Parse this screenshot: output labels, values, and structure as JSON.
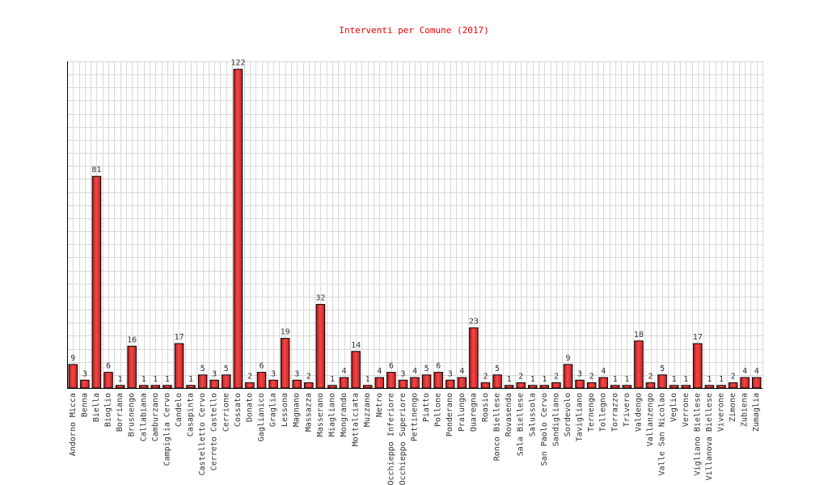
{
  "chart_data": {
    "type": "bar",
    "title": "Interventi per Comune (2017)",
    "xlabel": "",
    "ylabel": "",
    "ylim": [
      0,
      125
    ],
    "grid": true,
    "bar_color": "#e32a2a",
    "title_color": "#ee0000",
    "categories": [
      "Andorno Micca",
      "Benna",
      "Biella",
      "Bioglio",
      "Borriana",
      "Brusnengo",
      "Callabiana",
      "Camburzano",
      "Campiglia Cervo",
      "Candelo",
      "Casapinta",
      "Castelletto Cervo",
      "Cerreto Castello",
      "Cerrione",
      "Cossato",
      "Donato",
      "Gaglianico",
      "Graglia",
      "Lessona",
      "Magnano",
      "Massazza",
      "Masserano",
      "Miagliano",
      "Mongrando",
      "Mottalciata",
      "Muzzano",
      "Netro",
      "Occhieppo Inferiore",
      "Occhieppo Superiore",
      "Pettinengo",
      "Piatto",
      "Pollone",
      "Ponderano",
      "Pralungo",
      "Quaregna",
      "Roasio",
      "Ronco Biellese",
      "Rovasenda",
      "Sala Biellese",
      "Salussola",
      "San Paolo Cervo",
      "Sandigliano",
      "Sordevolo",
      "Tavigliano",
      "Ternengo",
      "Tollegno",
      "Torrazzo",
      "Trivero",
      "Valdengo",
      "Vallanzengo",
      "Valle San Nicolao",
      "Veglio",
      "Verrone",
      "Vigliano Biellese",
      "Villanova Biellese",
      "Viverone",
      "Zimone",
      "Zubiena",
      "Zumaglia"
    ],
    "values": [
      9,
      3,
      81,
      6,
      1,
      16,
      1,
      1,
      1,
      17,
      1,
      5,
      3,
      5,
      122,
      2,
      6,
      3,
      19,
      3,
      2,
      32,
      1,
      4,
      14,
      1,
      4,
      6,
      3,
      4,
      5,
      6,
      3,
      4,
      23,
      2,
      5,
      1,
      2,
      1,
      1,
      2,
      9,
      3,
      2,
      4,
      1,
      1,
      18,
      2,
      5,
      1,
      1,
      17,
      1,
      1,
      2,
      4,
      4
    ]
  }
}
